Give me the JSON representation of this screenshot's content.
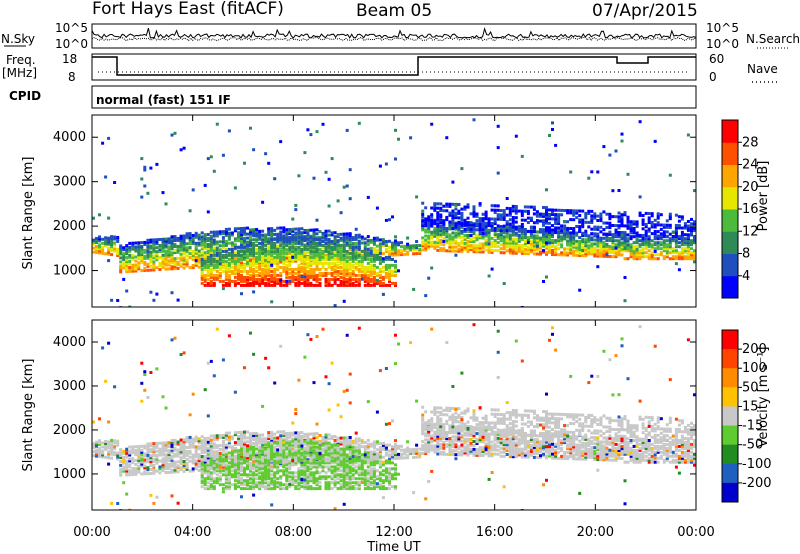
{
  "header": {
    "station": "Fort Hays East (fitACF)",
    "beam": "Beam 05",
    "date": "07/Apr/2015"
  },
  "noise_panel": {
    "left_label": "N.Sky",
    "right_label": "N.Search",
    "left_ticks": [
      "10^5",
      "10^0"
    ],
    "right_ticks": [
      "10^5",
      "10^0"
    ]
  },
  "freq_panel": {
    "left_label_line1": "Freq.",
    "left_label_line2": "[MHz]",
    "right_label": "Nave",
    "left_ticks": [
      "18",
      "8"
    ],
    "right_ticks": [
      "60",
      "0"
    ]
  },
  "cpid": {
    "label": "CPID",
    "value": "normal (fast) 151 IF"
  },
  "colors": {
    "power_scale": [
      "#0000ff",
      "#1f4fbf",
      "#2e8b57",
      "#4cbb3c",
      "#e6e600",
      "#ffa500",
      "#ff5000",
      "#ff0000"
    ],
    "velocity_scale": [
      "#ff0000",
      "#ff4500",
      "#ff8c00",
      "#ffc200",
      "#c8c8c8",
      "#5ecb2e",
      "#228b22",
      "#1e5fbf",
      "#0000cd"
    ]
  },
  "chart_data": [
    {
      "type": "heatmap",
      "panel": "power",
      "ylabel": "Slant Range [km]",
      "xlabel": "",
      "ylim": [
        180,
        4500
      ],
      "y_ticks": [
        "1000",
        "2000",
        "3000",
        "4000"
      ],
      "x_ticks": [
        "00:00",
        "04:00",
        "08:00",
        "12:00",
        "16:00",
        "20:00",
        "00:00"
      ],
      "colorbar": {
        "title": "Power [dB]",
        "ticks": [
          "4",
          "8",
          "12",
          "16",
          "20",
          "24",
          "28"
        ],
        "range": [
          0,
          30
        ]
      }
    },
    {
      "type": "heatmap",
      "panel": "velocity",
      "ylabel": "Slant Range [km]",
      "xlabel": "Time UT",
      "ylim": [
        180,
        4500
      ],
      "y_ticks": [
        "1000",
        "2000",
        "3000",
        "4000"
      ],
      "x_ticks": [
        "00:00",
        "04:00",
        "08:00",
        "12:00",
        "16:00",
        "20:00",
        "00:00"
      ],
      "colorbar": {
        "title": "Velocity [m s⁻¹]",
        "ticks": [
          "200",
          "100",
          "50",
          "15",
          "-15",
          "-50",
          "-100",
          "-200"
        ]
      }
    }
  ]
}
